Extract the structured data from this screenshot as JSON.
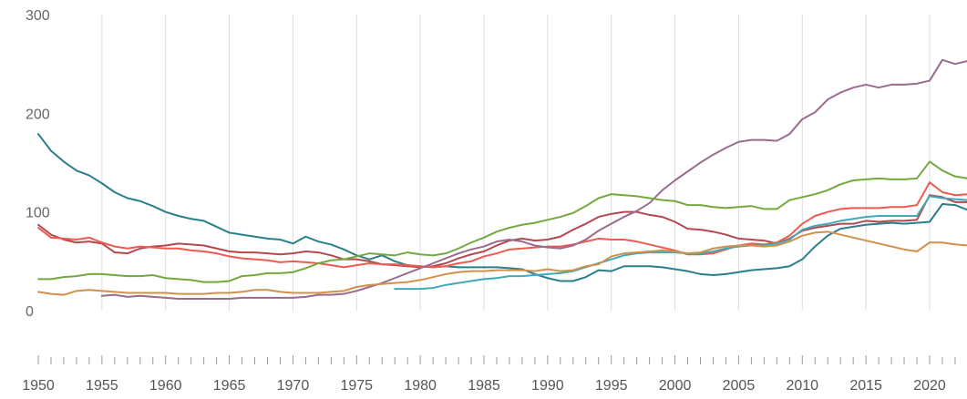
{
  "chart_data": {
    "type": "line",
    "title": "",
    "xlabel": "",
    "ylabel": "",
    "xlim": [
      1950,
      2023
    ],
    "ylim": [
      0,
      300
    ],
    "yticks": [
      0,
      100,
      200,
      300
    ],
    "xticks": [
      1950,
      1955,
      1960,
      1965,
      1970,
      1975,
      1980,
      1985,
      1990,
      1995,
      2000,
      2005,
      2010,
      2015,
      2020
    ],
    "grid": "vertical",
    "legend": "none",
    "series": [
      {
        "color": "#2a7f8c",
        "x": [
          1950,
          1951,
          1952,
          1953,
          1954,
          1955,
          1956,
          1957,
          1958,
          1959,
          1960,
          1961,
          1962,
          1963,
          1964,
          1965,
          1966,
          1967,
          1968,
          1969,
          1970,
          1971,
          1972,
          1973,
          1974,
          1975,
          1976,
          1977,
          1978,
          1979,
          1980,
          1981,
          1982,
          1983,
          1984,
          1985,
          1986,
          1987,
          1988,
          1989,
          1990,
          1991,
          1992,
          1993,
          1994,
          1995,
          1996,
          1997,
          1998,
          1999,
          2000,
          2001,
          2002,
          2003,
          2004,
          2005,
          2006,
          2007,
          2008,
          2009,
          2010,
          2011,
          2012,
          2013,
          2014,
          2015,
          2016,
          2017,
          2018,
          2019,
          2020,
          2021,
          2022,
          2023
        ],
        "values": [
          179,
          162,
          151,
          142,
          137,
          129,
          120,
          114,
          111,
          106,
          100,
          96,
          93,
          91,
          85,
          79,
          77,
          75,
          73,
          72,
          68,
          75,
          70,
          67,
          62,
          56,
          52,
          56,
          50,
          46,
          45,
          44,
          45,
          44,
          44,
          44,
          44,
          43,
          42,
          37,
          33,
          30,
          30,
          34,
          41,
          40,
          45,
          45,
          45,
          44,
          42,
          40,
          37,
          36,
          37,
          39,
          41,
          42,
          43,
          45,
          52,
          65,
          76,
          83,
          85,
          87,
          88,
          89,
          88,
          89,
          90,
          108,
          107,
          102
        ]
      },
      {
        "color": "#b5484e",
        "x": [
          1950,
          1951,
          1952,
          1953,
          1954,
          1955,
          1956,
          1957,
          1958,
          1959,
          1960,
          1961,
          1962,
          1963,
          1964,
          1965,
          1966,
          1967,
          1968,
          1969,
          1970,
          1971,
          1972,
          1973,
          1974,
          1975,
          1976,
          1977,
          1978,
          1979,
          1980,
          1981,
          1982,
          1983,
          1984,
          1985,
          1986,
          1987,
          1988,
          1989,
          1990,
          1991,
          1992,
          1993,
          1994,
          1995,
          1996,
          1997,
          1998,
          1999,
          2000,
          2001,
          2002,
          2003,
          2004,
          2005,
          2006,
          2007,
          2008,
          2009,
          2010,
          2011,
          2012,
          2013,
          2014,
          2015,
          2016,
          2017,
          2018,
          2019,
          2020,
          2021,
          2022,
          2023
        ],
        "values": [
          87,
          77,
          72,
          69,
          70,
          68,
          59,
          58,
          63,
          65,
          66,
          68,
          67,
          66,
          63,
          60,
          59,
          59,
          58,
          57,
          58,
          60,
          59,
          56,
          52,
          52,
          50,
          47,
          46,
          45,
          44,
          45,
          48,
          53,
          57,
          60,
          66,
          71,
          73,
          71,
          72,
          75,
          82,
          88,
          95,
          98,
          100,
          100,
          97,
          95,
          90,
          83,
          82,
          80,
          77,
          73,
          72,
          71,
          68,
          73,
          81,
          84,
          86,
          88,
          88,
          91,
          90,
          91,
          91,
          92,
          117,
          115,
          110,
          110
        ]
      },
      {
        "color": "#ee5a51",
        "x": [
          1950,
          1951,
          1952,
          1953,
          1954,
          1955,
          1956,
          1957,
          1958,
          1959,
          1960,
          1961,
          1962,
          1963,
          1964,
          1965,
          1966,
          1967,
          1968,
          1969,
          1970,
          1971,
          1972,
          1973,
          1974,
          1975,
          1976,
          1977,
          1978,
          1979,
          1980,
          1981,
          1982,
          1983,
          1984,
          1985,
          1986,
          1987,
          1988,
          1989,
          1990,
          1991,
          1992,
          1993,
          1994,
          1995,
          1996,
          1997,
          1998,
          1999,
          2000,
          2001,
          2002,
          2003,
          2004,
          2005,
          2006,
          2007,
          2008,
          2009,
          2010,
          2011,
          2012,
          2013,
          2014,
          2015,
          2016,
          2017,
          2018,
          2019,
          2020,
          2021,
          2022,
          2023
        ],
        "values": [
          84,
          74,
          73,
          72,
          74,
          69,
          65,
          63,
          65,
          64,
          63,
          63,
          61,
          60,
          58,
          55,
          53,
          52,
          51,
          49,
          50,
          49,
          48,
          46,
          44,
          46,
          48,
          47,
          47,
          46,
          45,
          44,
          45,
          48,
          50,
          55,
          58,
          62,
          63,
          64,
          65,
          65,
          67,
          70,
          73,
          72,
          72,
          70,
          67,
          64,
          61,
          57,
          57,
          58,
          62,
          66,
          68,
          67,
          69,
          76,
          88,
          96,
          100,
          103,
          104,
          104,
          104,
          105,
          105,
          107,
          130,
          120,
          117,
          118
        ]
      },
      {
        "color": "#9b6b8e",
        "x": [
          1950,
          1951,
          1952,
          1953,
          1954,
          1955,
          1956,
          1957,
          1958,
          1959,
          1960,
          1961,
          1962,
          1963,
          1964,
          1965,
          1966,
          1967,
          1968,
          1969,
          1970,
          1971,
          1972,
          1973,
          1974,
          1975,
          1976,
          1977,
          1978,
          1979,
          1980,
          1981,
          1982,
          1983,
          1984,
          1985,
          1986,
          1987,
          1988,
          1989,
          1990,
          1991,
          1992,
          1993,
          1994,
          1995,
          1996,
          1997,
          1998,
          1999,
          2000,
          2001,
          2002,
          2003,
          2004,
          2005,
          2006,
          2007,
          2008,
          2009,
          2010,
          2011,
          2012,
          2013,
          2014,
          2015,
          2016,
          2017,
          2018,
          2019,
          2020,
          2021,
          2022,
          2023
        ],
        "values": [
          null,
          null,
          null,
          null,
          null,
          15,
          16,
          14,
          15,
          14,
          13,
          12,
          12,
          12,
          12,
          12,
          13,
          13,
          13,
          13,
          13,
          14,
          16,
          16,
          17,
          20,
          24,
          28,
          33,
          38,
          43,
          48,
          53,
          58,
          62,
          65,
          70,
          72,
          70,
          66,
          64,
          63,
          66,
          72,
          81,
          88,
          95,
          101,
          109,
          122,
          132,
          141,
          150,
          158,
          165,
          171,
          173,
          173,
          172,
          179,
          194,
          201,
          214,
          221,
          226,
          229,
          226,
          229,
          229,
          230,
          233,
          254,
          250,
          253
        ]
      },
      {
        "color": "#73a93f",
        "x": [
          1950,
          1951,
          1952,
          1953,
          1954,
          1955,
          1956,
          1957,
          1958,
          1959,
          1960,
          1961,
          1962,
          1963,
          1964,
          1965,
          1966,
          1967,
          1968,
          1969,
          1970,
          1971,
          1972,
          1973,
          1974,
          1975,
          1976,
          1977,
          1978,
          1979,
          1980,
          1981,
          1982,
          1983,
          1984,
          1985,
          1986,
          1987,
          1988,
          1989,
          1990,
          1991,
          1992,
          1993,
          1994,
          1995,
          1996,
          1997,
          1998,
          1999,
          2000,
          2001,
          2002,
          2003,
          2004,
          2005,
          2006,
          2007,
          2008,
          2009,
          2010,
          2011,
          2012,
          2013,
          2014,
          2015,
          2016,
          2017,
          2018,
          2019,
          2020,
          2021,
          2022,
          2023
        ],
        "values": [
          32,
          32,
          34,
          35,
          37,
          37,
          36,
          35,
          35,
          36,
          33,
          32,
          31,
          29,
          29,
          30,
          35,
          36,
          38,
          38,
          39,
          43,
          48,
          51,
          52,
          55,
          58,
          57,
          56,
          59,
          57,
          56,
          58,
          63,
          69,
          74,
          80,
          84,
          87,
          89,
          92,
          95,
          99,
          106,
          114,
          118,
          117,
          116,
          114,
          112,
          111,
          107,
          107,
          105,
          104,
          105,
          106,
          103,
          103,
          112,
          115,
          118,
          122,
          128,
          132,
          133,
          134,
          133,
          133,
          134,
          151,
          142,
          136,
          134
        ]
      },
      {
        "color": "#41a9b9",
        "x": [
          1978,
          1979,
          1980,
          1981,
          1982,
          1983,
          1984,
          1985,
          1986,
          1987,
          1988,
          1989,
          1990,
          1991,
          1992,
          1993,
          1994,
          1995,
          1996,
          1997,
          1998,
          1999,
          2000,
          2001,
          2002,
          2003,
          2004,
          2005,
          2006,
          2007,
          2008,
          2009,
          2010,
          2011,
          2012,
          2013,
          2014,
          2015,
          2016,
          2017,
          2018,
          2019,
          2020,
          2021,
          2022,
          2023
        ],
        "values": [
          22,
          22,
          22,
          23,
          26,
          28,
          30,
          32,
          33,
          35,
          35,
          36,
          37,
          38,
          40,
          44,
          48,
          52,
          56,
          58,
          59,
          59,
          59,
          58,
          58,
          60,
          63,
          65,
          66,
          66,
          68,
          72,
          82,
          86,
          88,
          91,
          93,
          95,
          96,
          96,
          96,
          96,
          116,
          114,
          113,
          112
        ]
      },
      {
        "color": "#d1914b",
        "x": [
          1950,
          1951,
          1952,
          1953,
          1954,
          1955,
          1956,
          1957,
          1958,
          1959,
          1960,
          1961,
          1962,
          1963,
          1964,
          1965,
          1966,
          1967,
          1968,
          1969,
          1970,
          1971,
          1972,
          1973,
          1974,
          1975,
          1976,
          1977,
          1978,
          1979,
          1980,
          1981,
          1982,
          1983,
          1984,
          1985,
          1986,
          1987,
          1988,
          1989,
          1990,
          1991,
          1992,
          1993,
          1994,
          1995,
          1996,
          1997,
          1998,
          1999,
          2000,
          2001,
          2002,
          2003,
          2004,
          2005,
          2006,
          2007,
          2008,
          2009,
          2010,
          2011,
          2012,
          2013,
          2014,
          2015,
          2016,
          2017,
          2018,
          2019,
          2020,
          2021,
          2022,
          2023
        ],
        "values": [
          19,
          17,
          16,
          20,
          21,
          20,
          19,
          18,
          18,
          18,
          18,
          17,
          17,
          17,
          18,
          18,
          19,
          21,
          21,
          19,
          18,
          18,
          18,
          19,
          20,
          24,
          26,
          27,
          28,
          29,
          31,
          34,
          37,
          39,
          40,
          40,
          41,
          41,
          41,
          40,
          42,
          40,
          41,
          45,
          47,
          55,
          58,
          59,
          60,
          61,
          60,
          58,
          59,
          63,
          65,
          66,
          66,
          65,
          66,
          70,
          76,
          79,
          80,
          77,
          74,
          71,
          68,
          65,
          62,
          60,
          69,
          69,
          67,
          66
        ]
      }
    ]
  }
}
